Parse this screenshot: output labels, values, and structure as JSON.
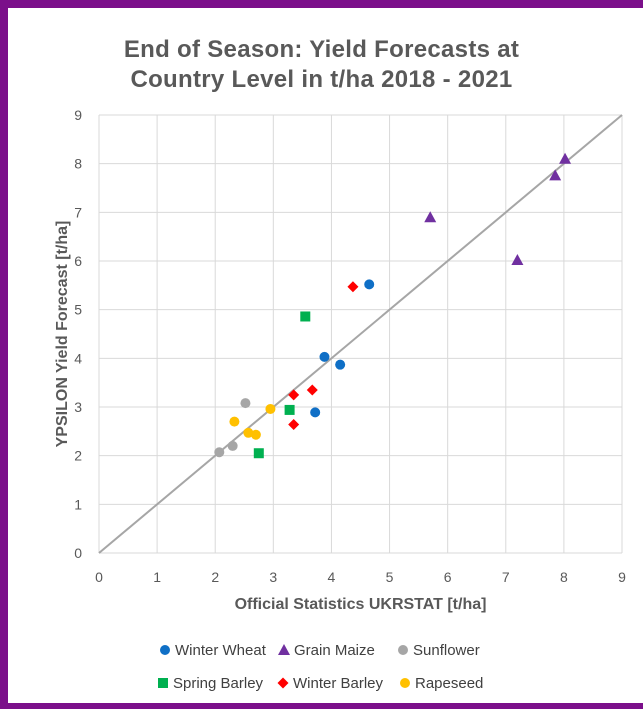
{
  "chart_data": {
    "type": "scatter",
    "title_line1": "End of Season: Yield Forecasts at",
    "title_line2": "Country Level in t/ha 2018 - 2021",
    "xlabel": "Official Statistics UKRSTAT [t/ha]",
    "ylabel": "YPSILON Yield Forecast [t/ha]",
    "xlim": [
      0,
      9
    ],
    "ylim": [
      0,
      9
    ],
    "xticks": [
      0,
      1,
      2,
      3,
      4,
      5,
      6,
      7,
      8,
      9
    ],
    "yticks": [
      0,
      1,
      2,
      3,
      4,
      5,
      6,
      7,
      8,
      9
    ],
    "grid": true,
    "legend_position": "bottom",
    "reference_line": {
      "from": [
        0,
        0
      ],
      "to": [
        9,
        9
      ],
      "color": "#A6A6A6"
    },
    "series": [
      {
        "name": "Winter Wheat",
        "marker": "circle",
        "color": "#0F6FC6",
        "points": [
          [
            4.65,
            5.52
          ],
          [
            3.88,
            4.03
          ],
          [
            4.15,
            3.87
          ],
          [
            3.72,
            2.89
          ]
        ]
      },
      {
        "name": "Grain Maize",
        "marker": "triangle",
        "color": "#7030A0",
        "points": [
          [
            8.02,
            8.1
          ],
          [
            7.85,
            7.76
          ],
          [
            5.7,
            6.9
          ],
          [
            7.2,
            6.02
          ]
        ]
      },
      {
        "name": "Sunflower",
        "marker": "circle",
        "color": "#A6A6A6",
        "points": [
          [
            2.52,
            3.08
          ],
          [
            2.07,
            2.07
          ],
          [
            2.3,
            2.2
          ]
        ]
      },
      {
        "name": "Spring Barley",
        "marker": "square",
        "color": "#00B050",
        "points": [
          [
            3.55,
            4.86
          ],
          [
            3.28,
            2.94
          ],
          [
            2.75,
            2.05
          ]
        ]
      },
      {
        "name": "Winter Barley",
        "marker": "diamond",
        "color": "#FF0000",
        "points": [
          [
            4.37,
            5.47
          ],
          [
            3.67,
            3.35
          ],
          [
            3.35,
            3.25
          ],
          [
            3.35,
            2.64
          ]
        ]
      },
      {
        "name": "Rapeseed",
        "marker": "circle",
        "color": "#FFC000",
        "points": [
          [
            2.33,
            2.7
          ],
          [
            2.57,
            2.47
          ],
          [
            2.7,
            2.43
          ],
          [
            2.95,
            2.96
          ]
        ]
      }
    ]
  }
}
